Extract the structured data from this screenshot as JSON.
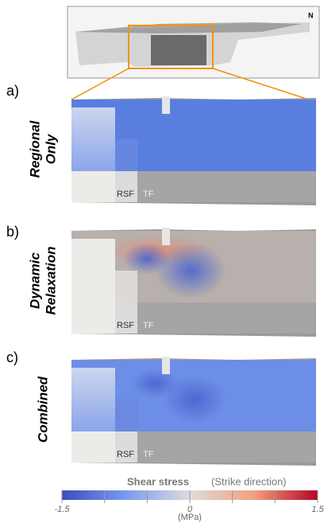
{
  "thumbnail": {
    "north_label": "N"
  },
  "panels": [
    {
      "label": "a)",
      "title_lines": [
        "Regional",
        "Only"
      ],
      "annotations": [
        "RSF",
        "TF"
      ]
    },
    {
      "label": "b)",
      "title_lines": [
        "Dynamic",
        "Relaxation"
      ],
      "annotations": [
        "RSF",
        "TF"
      ]
    },
    {
      "label": "c)",
      "title_lines": [
        "Combined"
      ],
      "annotations": [
        "RSF",
        "TF"
      ]
    }
  ],
  "colorbar": {
    "title": "Shear stress",
    "subtitle": "(Strike direction)",
    "unit": "(MPa)",
    "lim": [
      -1.5,
      1.5
    ],
    "ticks": [
      -1.5,
      0,
      1.5
    ],
    "minor_ticks": [
      -1,
      -0.5,
      0.5,
      1
    ]
  }
}
